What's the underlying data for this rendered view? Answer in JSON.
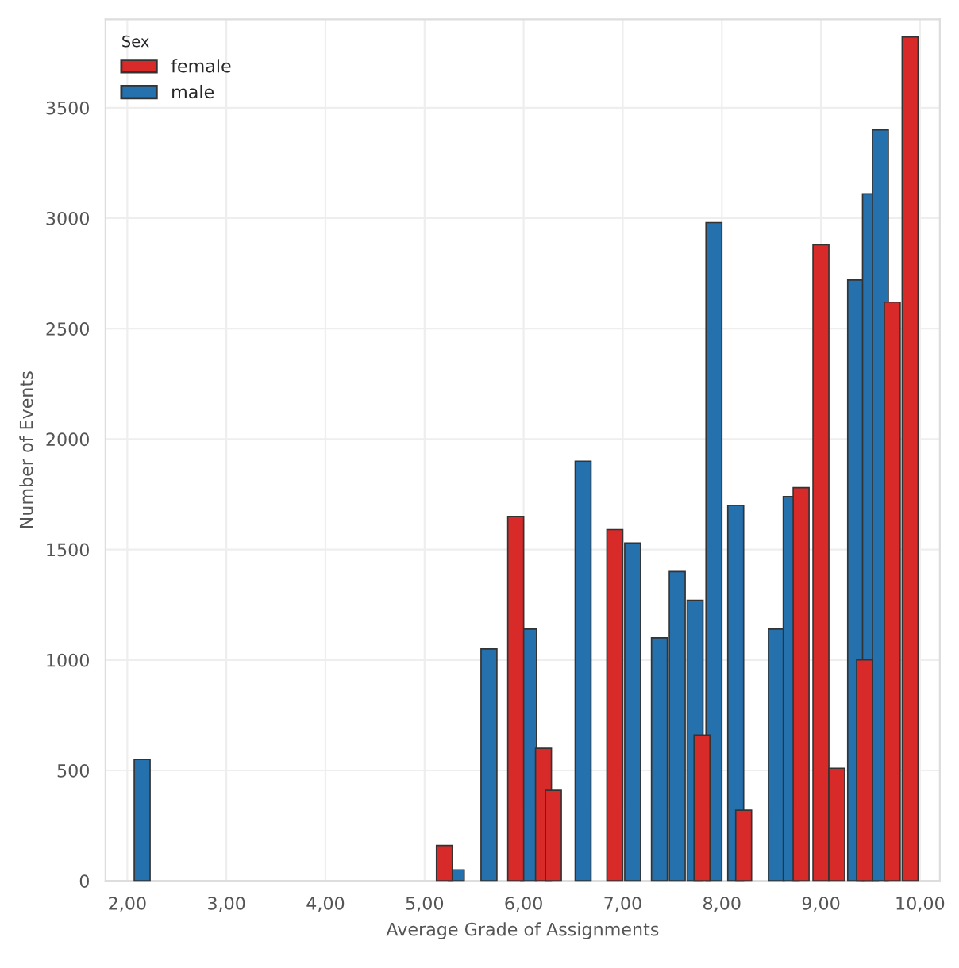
{
  "chart_data": {
    "type": "bar",
    "xlabel": "Average Grade of Assignments",
    "ylabel": "Number of Events",
    "legend_title": "Sex",
    "legend": "top left",
    "grid": true,
    "xlim": [
      1.78,
      10.2
    ],
    "xticks": [
      {
        "value": 2,
        "label": "2,00"
      },
      {
        "value": 3,
        "label": "3,00"
      },
      {
        "value": 4,
        "label": "4,00"
      },
      {
        "value": 5,
        "label": "5,00"
      },
      {
        "value": 6,
        "label": "6,00"
      },
      {
        "value": 7,
        "label": "7,00"
      },
      {
        "value": 8,
        "label": "8,00"
      },
      {
        "value": 9,
        "label": "9,00"
      },
      {
        "value": 10,
        "label": "10,00"
      }
    ],
    "ylim": [
      0,
      3900
    ],
    "yticks": [
      0,
      500,
      1000,
      1500,
      2000,
      2500,
      3000,
      3500
    ],
    "series": [
      {
        "name": "male",
        "color": "#2471ae",
        "x": [
          2.15,
          5.32,
          5.65,
          6.05,
          6.6,
          7.1,
          7.37,
          7.55,
          7.73,
          7.92,
          8.14,
          8.55,
          8.7,
          9.35,
          9.5,
          9.6
        ],
        "values": [
          550,
          50,
          1050,
          1140,
          1900,
          1530,
          1100,
          1400,
          1270,
          2980,
          1700,
          1140,
          1740,
          2720,
          3110,
          3400
        ]
      },
      {
        "name": "female",
        "color": "#d92a2a",
        "x": [
          5.2,
          5.92,
          6.2,
          6.3,
          6.92,
          7.8,
          8.22,
          8.8,
          9.0,
          9.16,
          9.44,
          9.72,
          9.9
        ],
        "values": [
          160,
          1650,
          600,
          410,
          1590,
          660,
          320,
          1780,
          2880,
          510,
          1000,
          2620,
          3820
        ]
      }
    ]
  }
}
